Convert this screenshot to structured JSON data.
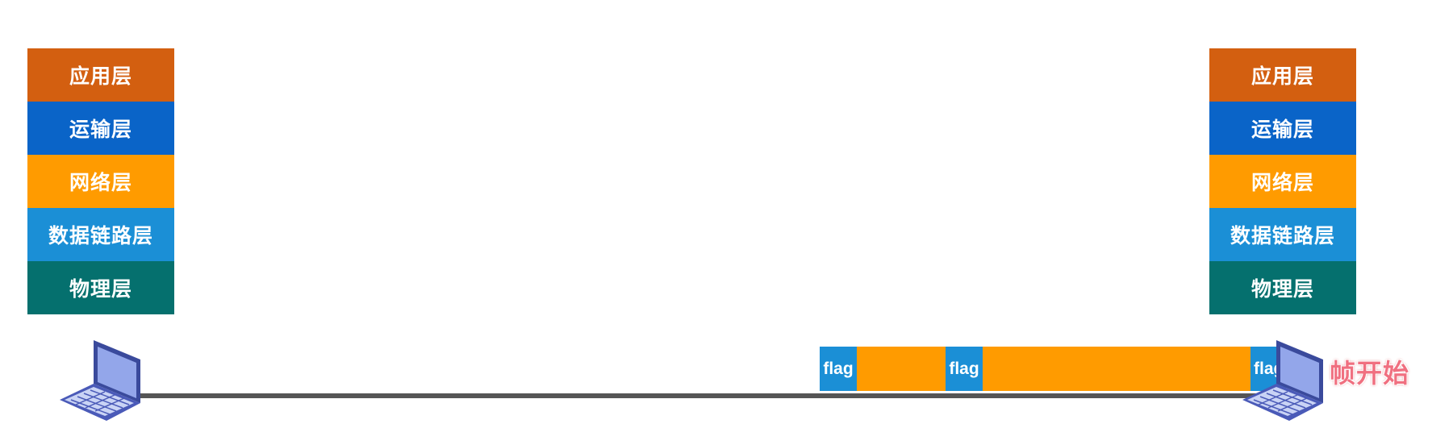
{
  "left_stack": {
    "layers": [
      {
        "label": "应用层",
        "color": "#d35f10"
      },
      {
        "label": "运输层",
        "color": "#0a64c8"
      },
      {
        "label": "网络层",
        "color": "#ff9b00"
      },
      {
        "label": "数据链路层",
        "color": "#1b8fd6"
      },
      {
        "label": "物理层",
        "color": "#05706e"
      }
    ]
  },
  "right_stack": {
    "layers": [
      {
        "label": "应用层",
        "color": "#d35f10"
      },
      {
        "label": "运输层",
        "color": "#0a64c8"
      },
      {
        "label": "网络层",
        "color": "#ff9b00"
      },
      {
        "label": "数据链路层",
        "color": "#1b8fd6"
      },
      {
        "label": "物理层",
        "color": "#05706e"
      }
    ]
  },
  "frame_stream": {
    "flag_label": "flag",
    "segments": [
      "flag",
      "data",
      "flag",
      "data",
      "flag"
    ]
  },
  "caption": "帧开始",
  "colors": {
    "flag": "#1b8fd6",
    "data": "#ff9b00",
    "link": "#555555"
  }
}
